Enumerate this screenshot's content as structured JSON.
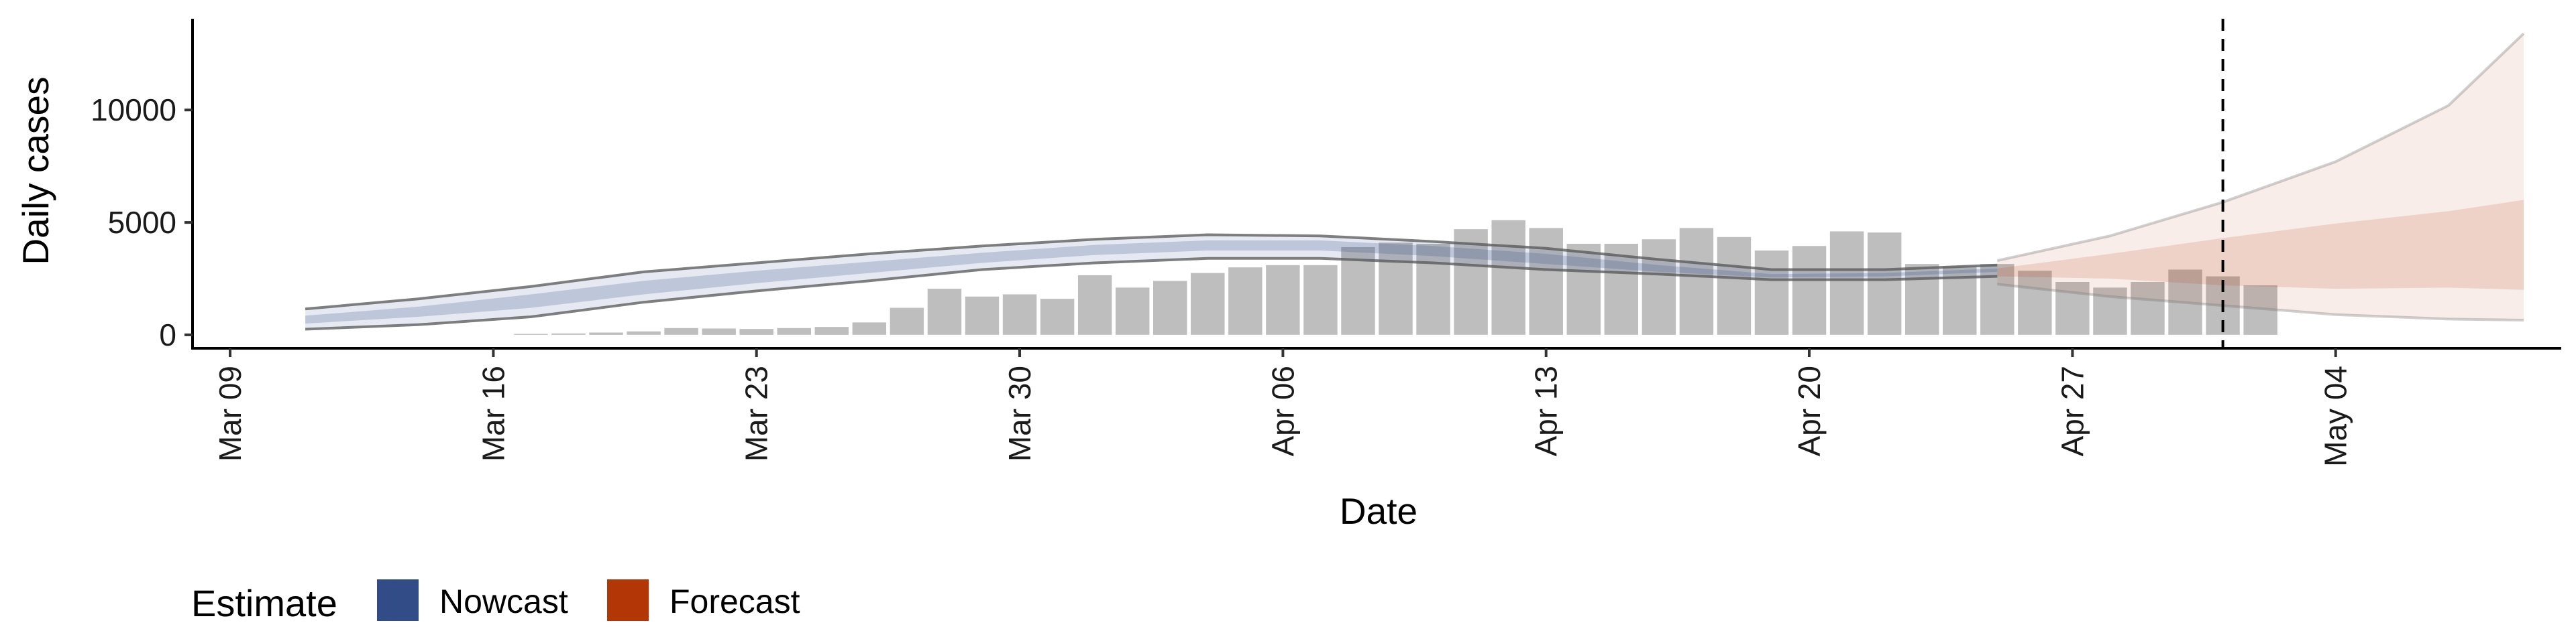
{
  "chart_data": {
    "type": "bar",
    "title": "",
    "xlabel": "Date",
    "ylabel": "Daily cases",
    "x_ticks": [
      "Mar 09",
      "Mar 16",
      "Mar 23",
      "Mar 30",
      "Apr 06",
      "Apr 13",
      "Apr 20",
      "Apr 27",
      "May 04"
    ],
    "y_ticks": [
      "0",
      "5000",
      "10000"
    ],
    "xlim": [
      "2020-03-08",
      "2020-05-10"
    ],
    "ylim": [
      -600,
      14000
    ],
    "grid": false,
    "legend_position": "bottom-left",
    "legend_title": "Estimate",
    "legend": [
      {
        "name": "Nowcast",
        "color": "#324C88"
      },
      {
        "name": "Forecast",
        "color": "#B33607"
      }
    ],
    "forecast_start": "2020-05-01",
    "bars": {
      "color": "#BEBEBE",
      "dates": [
        "2020-03-17",
        "2020-03-18",
        "2020-03-19",
        "2020-03-20",
        "2020-03-21",
        "2020-03-22",
        "2020-03-23",
        "2020-03-24",
        "2020-03-25",
        "2020-03-26",
        "2020-03-27",
        "2020-03-28",
        "2020-03-29",
        "2020-03-30",
        "2020-03-31",
        "2020-04-01",
        "2020-04-02",
        "2020-04-03",
        "2020-04-04",
        "2020-04-05",
        "2020-04-06",
        "2020-04-07",
        "2020-04-08",
        "2020-04-09",
        "2020-04-10",
        "2020-04-11",
        "2020-04-12",
        "2020-04-13",
        "2020-04-14",
        "2020-04-15",
        "2020-04-16",
        "2020-04-17",
        "2020-04-18",
        "2020-04-19",
        "2020-04-20",
        "2020-04-21",
        "2020-04-22",
        "2020-04-23",
        "2020-04-24",
        "2020-04-25",
        "2020-04-26",
        "2020-04-27",
        "2020-04-28",
        "2020-04-29",
        "2020-04-30",
        "2020-05-01",
        "2020-05-02"
      ],
      "values": [
        40,
        60,
        100,
        150,
        300,
        280,
        260,
        300,
        350,
        550,
        1200,
        2050,
        1700,
        1800,
        1600,
        2650,
        2100,
        2400,
        2750,
        3000,
        3100,
        3100,
        3900,
        4100,
        4050,
        4700,
        5100,
        4750,
        4050,
        4050,
        4250,
        4750,
        4350,
        3750,
        3950,
        4600,
        4550,
        3150,
        3050,
        3150,
        2850,
        2350,
        2100,
        2350,
        2900,
        2600,
        2200
      ]
    },
    "nowcast": {
      "color": "#324C88",
      "dates": [
        "2020-03-11",
        "2020-03-14",
        "2020-03-17",
        "2020-03-20",
        "2020-03-23",
        "2020-03-26",
        "2020-03-29",
        "2020-04-01",
        "2020-04-04",
        "2020-04-07",
        "2020-04-10",
        "2020-04-13",
        "2020-04-16",
        "2020-04-19",
        "2020-04-22",
        "2020-04-25"
      ],
      "upper_90": [
        1150,
        1600,
        2150,
        2800,
        3200,
        3600,
        3950,
        4250,
        4450,
        4400,
        4150,
        3850,
        3350,
        2900,
        2900,
        3100
      ],
      "upper_50": [
        850,
        1250,
        1800,
        2400,
        2850,
        3250,
        3650,
        4000,
        4200,
        4200,
        3950,
        3600,
        3100,
        2700,
        2750,
        2950
      ],
      "lower_50": [
        500,
        800,
        1200,
        1800,
        2300,
        2750,
        3200,
        3550,
        3750,
        3750,
        3500,
        3150,
        2800,
        2550,
        2600,
        2800
      ],
      "lower_90": [
        250,
        450,
        800,
        1450,
        1950,
        2400,
        2900,
        3200,
        3400,
        3400,
        3200,
        2900,
        2700,
        2450,
        2450,
        2600
      ]
    },
    "forecast": {
      "color": "#B33607",
      "dates": [
        "2020-04-25",
        "2020-04-28",
        "2020-05-01",
        "2020-05-04",
        "2020-05-07",
        "2020-05-09"
      ],
      "upper_90": [
        3300,
        4400,
        5900,
        7700,
        10200,
        13400
      ],
      "upper_50": [
        2950,
        3600,
        4300,
        4950,
        5500,
        6000
      ],
      "lower_50": [
        2600,
        2500,
        2200,
        2050,
        2100,
        2000
      ],
      "lower_90": [
        2250,
        1700,
        1300,
        900,
        700,
        650
      ]
    }
  }
}
